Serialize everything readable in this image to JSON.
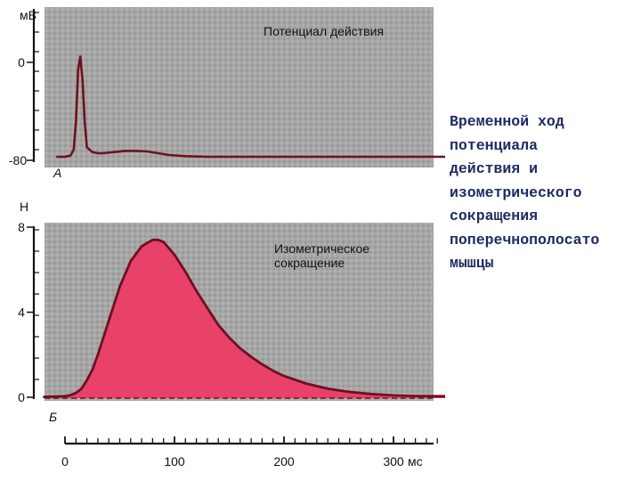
{
  "caption": {
    "lines": [
      "Временной ход",
      "потенциала",
      "действия и",
      "изометрического",
      "сокращения",
      "поперечнополосато",
      "мышцы"
    ]
  },
  "colors": {
    "panel_gray": "#a3a3a3",
    "curve_dark_red": "#6e1020",
    "fill_pink": "#e8426a",
    "caption_text": "#1d2b63"
  },
  "chart_data": [
    {
      "type": "line",
      "panel_label": "A",
      "annotation": "Потенциал действия",
      "y_unit": "мВ",
      "y_ticks": [
        0,
        -80
      ],
      "ylim": [
        -85,
        12
      ],
      "xlim": [
        -8,
        380
      ],
      "grid": false,
      "series": [
        {
          "x": [
            -8,
            0,
            5,
            8,
            10,
            12,
            14,
            16,
            18,
            20,
            25,
            30,
            35,
            45,
            55,
            65,
            75,
            85,
            95,
            110,
            130,
            150,
            380
          ],
          "y": [
            -80,
            -80,
            -79,
            -74,
            -50,
            -6,
            5,
            -15,
            -50,
            -72,
            -76,
            -77,
            -77,
            -76,
            -75,
            -75,
            -75.5,
            -77,
            -78.5,
            -79.5,
            -80,
            -80,
            -80
          ]
        }
      ]
    },
    {
      "type": "area",
      "panel_label": "Б",
      "annotation": "Изометрическое сокращение",
      "y_unit": "Н",
      "y_ticks": [
        0,
        4,
        8
      ],
      "ylim": [
        0,
        8
      ],
      "x_unit": "мс",
      "x_ticks": [
        0,
        100,
        200,
        300
      ],
      "xlim": [
        -20,
        380
      ],
      "grid": false,
      "series": [
        {
          "x": [
            -20,
            0,
            5,
            10,
            15,
            20,
            25,
            30,
            40,
            50,
            60,
            70,
            80,
            85,
            90,
            100,
            110,
            120,
            130,
            140,
            150,
            160,
            170,
            180,
            190,
            200,
            220,
            240,
            260,
            280,
            300,
            320,
            340,
            380
          ],
          "y": [
            0.02,
            0.05,
            0.1,
            0.2,
            0.4,
            0.8,
            1.3,
            2.0,
            3.6,
            5.2,
            6.4,
            7.1,
            7.4,
            7.4,
            7.3,
            6.7,
            5.9,
            5.0,
            4.2,
            3.4,
            2.8,
            2.3,
            1.9,
            1.55,
            1.25,
            1.0,
            0.65,
            0.4,
            0.25,
            0.15,
            0.09,
            0.06,
            0.05,
            0.05
          ]
        }
      ]
    }
  ]
}
